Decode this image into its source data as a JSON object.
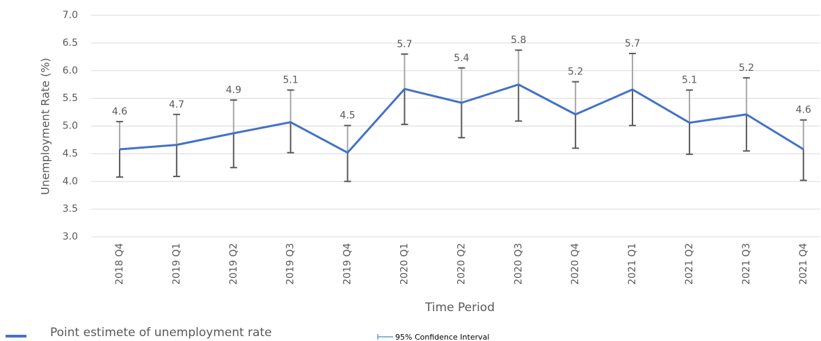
{
  "chart_data": {
    "type": "line",
    "x_label": "Time Period",
    "y_label": "Unemployment Rate (%)",
    "categories": [
      "2018 Q4",
      "2019 Q1",
      "2019 Q2",
      "2019 Q3",
      "2019 Q4",
      "2020 Q1",
      "2020 Q2",
      "2020 Q3",
      "2020 Q4",
      "2021 Q1",
      "2021 Q2",
      "2021 Q3",
      "2021 Q4"
    ],
    "series": [
      {
        "name": "Point estimete of unemployment rate",
        "color": "#4472c4",
        "values": [
          4.58,
          4.66,
          4.87,
          5.07,
          4.52,
          5.67,
          5.42,
          5.75,
          5.21,
          5.66,
          5.06,
          5.21,
          4.58
        ],
        "value_labels": [
          "4.6",
          "4.7",
          "4.9",
          "5.1",
          "4.5",
          "5.7",
          "5.4",
          "5.8",
          "5.2",
          "5.7",
          "5.1",
          "5.2",
          "4.6"
        ]
      }
    ],
    "confidence_interval": {
      "name": "95% Confidence Interval",
      "color": "#595959",
      "lower": [
        4.08,
        4.09,
        4.25,
        4.52,
        4.0,
        5.03,
        4.79,
        5.09,
        4.6,
        5.01,
        4.49,
        4.55,
        4.02
      ],
      "upper": [
        5.08,
        5.21,
        5.47,
        5.65,
        5.01,
        6.3,
        6.05,
        6.37,
        5.8,
        6.31,
        5.65,
        5.87,
        5.11
      ]
    },
    "ylim": [
      3.0,
      7.0
    ],
    "yticks": [
      {
        "value": 3.0,
        "label": "3.0"
      },
      {
        "value": 3.5,
        "label": "3.5"
      },
      {
        "value": 4.0,
        "label": "4.0"
      },
      {
        "value": 4.5,
        "label": "4.5"
      },
      {
        "value": 5.0,
        "label": "5.0"
      },
      {
        "value": 5.5,
        "label": "5.5"
      },
      {
        "value": 6.0,
        "label": "6.0"
      },
      {
        "value": 6.5,
        "label": "6.5"
      },
      {
        "value": 7.0,
        "label": "7.0"
      }
    ],
    "grid": true
  }
}
